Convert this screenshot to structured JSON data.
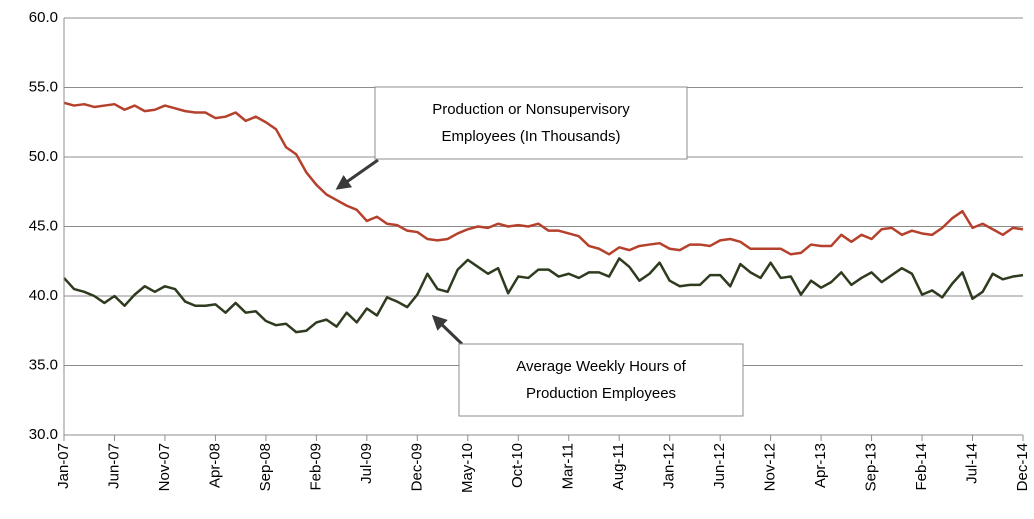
{
  "chart_data": {
    "type": "line",
    "categories": [
      "Jan-07",
      null,
      null,
      null,
      null,
      "Jun-07",
      null,
      null,
      null,
      null,
      "Nov-07",
      null,
      null,
      null,
      null,
      "Apr-08",
      null,
      null,
      null,
      null,
      "Sep-08",
      null,
      null,
      null,
      null,
      "Feb-09",
      null,
      null,
      null,
      null,
      "Jul-09",
      null,
      null,
      null,
      null,
      "Dec-09",
      null,
      null,
      null,
      null,
      "May-10",
      null,
      null,
      null,
      null,
      "Oct-10",
      null,
      null,
      null,
      null,
      "Mar-11",
      null,
      null,
      null,
      null,
      "Aug-11",
      null,
      null,
      null,
      null,
      "Jan-12",
      null,
      null,
      null,
      null,
      "Jun-12",
      null,
      null,
      null,
      null,
      "Nov-12",
      null,
      null,
      null,
      null,
      "Apr-13",
      null,
      null,
      null,
      null,
      "Sep-13",
      null,
      null,
      null,
      null,
      "Feb-14",
      null,
      null,
      null,
      null,
      "Jul-14",
      null,
      null,
      null,
      null,
      "Dec-14"
    ],
    "series": [
      {
        "color": "#b5412d",
        "values": [
          53.9,
          53.7,
          53.8,
          53.6,
          53.7,
          53.8,
          53.4,
          53.7,
          53.3,
          53.4,
          53.7,
          53.5,
          53.3,
          53.2,
          53.2,
          52.8,
          52.9,
          53.2,
          52.6,
          52.9,
          52.5,
          52.0,
          50.7,
          50.2,
          48.9,
          48.0,
          47.3,
          46.9,
          46.5,
          46.2,
          45.4,
          45.7,
          45.2,
          45.1,
          44.7,
          44.6,
          44.1,
          44.0,
          44.1,
          44.5,
          44.8,
          45.0,
          44.9,
          45.2,
          45.0,
          45.1,
          45.0,
          45.2,
          44.7,
          44.7,
          44.5,
          44.3,
          43.6,
          43.4,
          43.0,
          43.5,
          43.3,
          43.6,
          43.7,
          43.8,
          43.4,
          43.3,
          43.7,
          43.7,
          43.6,
          44.0,
          44.1,
          43.9,
          43.4,
          43.4,
          43.4,
          43.4,
          43.0,
          43.1,
          43.7,
          43.6,
          43.6,
          44.4,
          43.9,
          44.4,
          44.1,
          44.8,
          44.9,
          44.4,
          44.7,
          44.5,
          44.4,
          44.9,
          45.6,
          46.1,
          44.9,
          45.2,
          44.8,
          44.4,
          44.9,
          44.8
        ]
      },
      {
        "color": "#2e3b1f",
        "values": [
          41.3,
          40.5,
          40.3,
          40.0,
          39.5,
          40.0,
          39.3,
          40.1,
          40.7,
          40.3,
          40.7,
          40.5,
          39.6,
          39.3,
          39.3,
          39.4,
          38.8,
          39.5,
          38.8,
          38.9,
          38.2,
          37.9,
          38.0,
          37.4,
          37.5,
          38.1,
          38.3,
          37.8,
          38.8,
          38.1,
          39.1,
          38.6,
          39.9,
          39.6,
          39.2,
          40.1,
          41.6,
          40.5,
          40.3,
          41.9,
          42.6,
          42.1,
          41.6,
          42.0,
          40.2,
          41.4,
          41.3,
          41.9,
          41.9,
          41.4,
          41.6,
          41.3,
          41.7,
          41.7,
          41.4,
          42.7,
          42.1,
          41.1,
          41.6,
          42.4,
          41.1,
          40.7,
          40.8,
          40.8,
          41.5,
          41.5,
          40.7,
          42.3,
          41.7,
          41.3,
          42.4,
          41.3,
          41.4,
          40.1,
          41.1,
          40.6,
          41.0,
          41.7,
          40.8,
          41.3,
          41.7,
          41.0,
          41.5,
          42.0,
          41.6,
          40.1,
          40.4,
          39.9,
          40.9,
          41.7,
          39.8,
          40.3,
          41.6,
          41.2,
          41.4,
          41.5
        ]
      }
    ],
    "ylim": [
      30,
      60
    ],
    "yticks": [
      {
        "value": 30,
        "label": "30.0"
      },
      {
        "value": 35,
        "label": "35.0"
      },
      {
        "value": 40,
        "label": "40.0"
      },
      {
        "value": 45,
        "label": "45.0"
      },
      {
        "value": 50,
        "label": "50.0"
      },
      {
        "value": 55,
        "label": "55.0"
      },
      {
        "value": 60,
        "label": "60.0"
      }
    ],
    "grid": true,
    "annotations": [
      {
        "lines": [
          "Production or Nonsupervisory",
          "Employees (In Thousands)"
        ]
      },
      {
        "lines": [
          "Average Weekly Hours of",
          "Production Employees"
        ]
      }
    ]
  }
}
